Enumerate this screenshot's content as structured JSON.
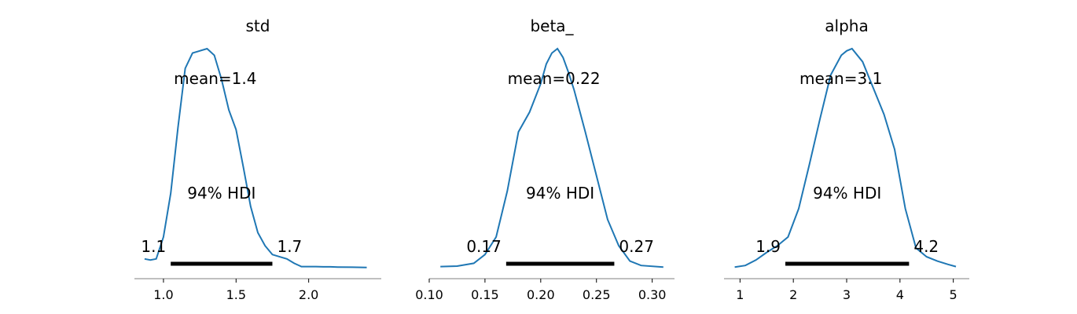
{
  "chart_data": [
    {
      "type": "line",
      "title": "std",
      "mean_label": "mean=1.4",
      "hdi_label": "94% HDI",
      "hdi": [
        1.05,
        1.75
      ],
      "hdi_low_label": "1.1",
      "hdi_high_label": "1.7",
      "xlim": [
        0.8,
        2.5
      ],
      "xticks": [
        1.0,
        1.5,
        2.0
      ],
      "xtick_labels": [
        "1.0",
        "1.5",
        "2.0"
      ],
      "ylim": [
        0,
        1.0
      ],
      "series": [
        {
          "x": [
            0.87,
            0.91,
            0.95,
            1.0,
            1.05,
            1.1,
            1.15,
            1.2,
            1.25,
            1.3,
            1.35,
            1.4,
            1.45,
            1.5,
            1.55,
            1.6,
            1.65,
            1.7,
            1.75,
            1.8,
            1.85,
            1.9,
            1.95,
            2.0,
            2.05,
            2.1,
            2.15,
            2.2,
            2.3,
            2.4
          ],
          "y": [
            0.04,
            0.035,
            0.04,
            0.14,
            0.34,
            0.64,
            0.91,
            0.98,
            0.99,
            1.0,
            0.97,
            0.86,
            0.72,
            0.63,
            0.46,
            0.28,
            0.16,
            0.1,
            0.06,
            0.05,
            0.04,
            0.02,
            0.005,
            0.005,
            0.005,
            0.004,
            0.004,
            0.003,
            0.002,
            0.001
          ]
        }
      ]
    },
    {
      "type": "line",
      "title": "beta_",
      "mean_label": "mean=0.22",
      "hdi_label": "94% HDI",
      "hdi": [
        0.169,
        0.266
      ],
      "hdi_low_label": "0.17",
      "hdi_high_label": "0.27",
      "xlim": [
        0.1,
        0.32
      ],
      "xticks": [
        0.1,
        0.15,
        0.2,
        0.25,
        0.3
      ],
      "xtick_labels": [
        "0.10",
        "0.15",
        "0.20",
        "0.25",
        "0.30"
      ],
      "ylim": [
        0,
        1.0
      ],
      "series": [
        {
          "x": [
            0.11,
            0.125,
            0.14,
            0.15,
            0.16,
            0.17,
            0.18,
            0.19,
            0.2,
            0.205,
            0.21,
            0.215,
            0.22,
            0.225,
            0.23,
            0.24,
            0.25,
            0.26,
            0.27,
            0.28,
            0.29,
            0.31
          ],
          "y": [
            0.005,
            0.007,
            0.02,
            0.06,
            0.14,
            0.35,
            0.62,
            0.71,
            0.84,
            0.93,
            0.98,
            1.0,
            0.96,
            0.89,
            0.81,
            0.62,
            0.42,
            0.22,
            0.1,
            0.03,
            0.01,
            0.003
          ]
        }
      ]
    },
    {
      "type": "line",
      "title": "alpha",
      "mean_label": "mean=3.1",
      "hdi_label": "94% HDI",
      "hdi": [
        1.85,
        4.17
      ],
      "hdi_low_label": "1.9",
      "hdi_high_label": "4.2",
      "xlim": [
        0.7,
        5.3
      ],
      "xticks": [
        1,
        2,
        3,
        4,
        5
      ],
      "xtick_labels": [
        "1",
        "2",
        "3",
        "4",
        "5"
      ],
      "ylim": [
        0,
        1.0
      ],
      "series": [
        {
          "x": [
            0.9,
            1.1,
            1.3,
            1.5,
            1.7,
            1.9,
            2.1,
            2.3,
            2.5,
            2.7,
            2.9,
            3.0,
            3.1,
            3.3,
            3.5,
            3.7,
            3.9,
            4.1,
            4.3,
            4.5,
            4.7,
            4.9,
            5.05
          ],
          "y": [
            0.003,
            0.01,
            0.035,
            0.07,
            0.1,
            0.14,
            0.27,
            0.47,
            0.68,
            0.88,
            0.97,
            0.99,
            1.0,
            0.94,
            0.82,
            0.7,
            0.54,
            0.27,
            0.09,
            0.05,
            0.03,
            0.015,
            0.005
          ]
        }
      ]
    }
  ]
}
